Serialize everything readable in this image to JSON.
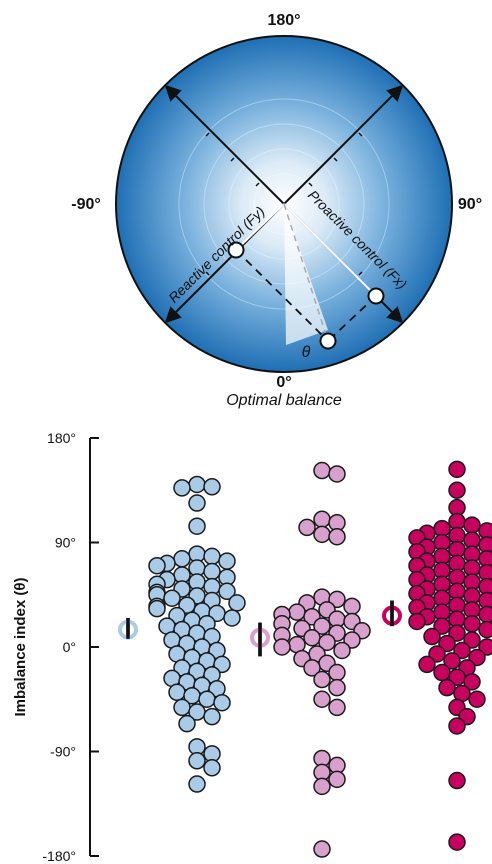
{
  "polar": {
    "angle_labels": {
      "top": "180°",
      "left": "-90°",
      "right": "90°",
      "bottom": "0°"
    },
    "bottom_caption": "Optimal balance",
    "axis_reactive": "Reactive control (Fy)",
    "axis_proactive": "Proactive control (Fx)",
    "theta_symbol": "θ",
    "colors": {
      "disc_center": "#ffffff",
      "disc_edge": "#1f6fb4",
      "outline": "#111111"
    }
  },
  "chart_data": {
    "type": "scatter",
    "title": "",
    "xlabel": "",
    "ylabel": "Imbalance index (θ)",
    "ylim": [
      -180,
      180
    ],
    "yticks": [
      180,
      90,
      0,
      -90,
      -180
    ],
    "ytick_labels": [
      "180°",
      "90°",
      "0°",
      "-90°",
      "-180°"
    ],
    "grid": false,
    "series": [
      {
        "color": "#a9cbe8",
        "edge": "#1a1a1a",
        "summary": {
          "mean": 15,
          "ci": [
            7,
            25
          ]
        },
        "values": [
          138,
          140,
          137,
          124,
          104,
          80,
          78,
          76,
          74,
          72,
          70,
          68,
          65,
          62,
          60,
          58,
          56,
          54,
          52,
          50,
          48,
          47,
          45,
          44,
          42,
          40,
          38,
          36,
          35,
          33,
          31,
          29,
          27,
          25,
          23,
          20,
          18,
          15,
          12,
          9,
          6,
          3,
          0,
          -3,
          -6,
          -9,
          -12,
          -15,
          -18,
          -21,
          -24,
          -27,
          -30,
          -33,
          -36,
          -39,
          -42,
          -45,
          -48,
          -52,
          -56,
          -60,
          -66,
          -86,
          -92,
          -98,
          -104,
          -118
        ]
      },
      {
        "color": "#d8a0cc",
        "edge": "#1a1a1a",
        "summary": {
          "mean": 8,
          "ci": [
            -8,
            21
          ]
        },
        "values": [
          152,
          149,
          110,
          107,
          103,
          97,
          95,
          43,
          41,
          38,
          35,
          32,
          30,
          28,
          26,
          24,
          22,
          20,
          18,
          16,
          14,
          12,
          10,
          8,
          6,
          4,
          2,
          0,
          -3,
          -6,
          -10,
          -14,
          -18,
          -22,
          -28,
          -35,
          -45,
          -52,
          -96,
          -102,
          -108,
          -114,
          -120,
          -174
        ]
      },
      {
        "color": "#c8005e",
        "edge": "#1a1a1a",
        "summary": {
          "mean": 27,
          "ci": [
            18,
            40
          ]
        },
        "values": [
          153,
          135,
          120,
          108,
          105,
          102,
          100,
          98,
          96,
          94,
          92,
          90,
          88,
          86,
          84,
          82,
          80,
          78,
          76,
          74,
          72,
          70,
          68,
          66,
          64,
          62,
          60,
          58,
          56,
          54,
          52,
          50,
          48,
          46,
          44,
          42,
          40,
          38,
          36,
          34,
          32,
          30,
          28,
          26,
          24,
          22,
          20,
          18,
          15,
          12,
          9,
          6,
          3,
          0,
          -3,
          -6,
          -9,
          -12,
          -15,
          -18,
          -22,
          -26,
          -30,
          -35,
          -40,
          -45,
          -52,
          -60,
          -68,
          -115,
          -168
        ]
      }
    ]
  }
}
